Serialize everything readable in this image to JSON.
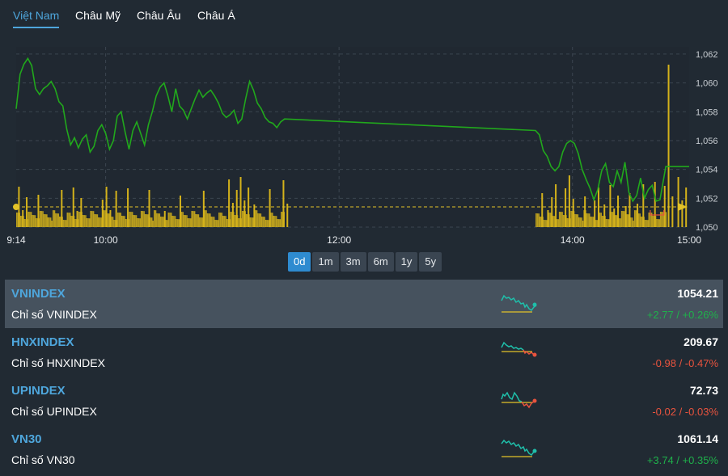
{
  "tabs": [
    {
      "label": "Việt Nam",
      "active": true
    },
    {
      "label": "Châu Mỹ",
      "active": false
    },
    {
      "label": "Châu Âu",
      "active": false
    },
    {
      "label": "Châu Á",
      "active": false
    }
  ],
  "chart_data": {
    "type": "line",
    "x_ticks": [
      "9:14",
      "10:00",
      "12:00",
      "14:00",
      "15:00"
    ],
    "y_ticks": [
      "1,062",
      "1,060",
      "1,058",
      "1,056",
      "1,054",
      "1,052",
      "1,050"
    ],
    "ylim": [
      1050,
      1062.5
    ],
    "reference_value": 1051.4,
    "x_domain_minutes": [
      554,
      900
    ],
    "series": [
      {
        "points": [
          [
            554,
            1058.2
          ],
          [
            556,
            1060.6
          ],
          [
            558,
            1061.3
          ],
          [
            560,
            1061.7
          ],
          [
            562,
            1061.2
          ],
          [
            564,
            1059.6
          ],
          [
            566,
            1059.2
          ],
          [
            568,
            1059.6
          ],
          [
            570,
            1059.8
          ],
          [
            572,
            1060.1
          ],
          [
            574,
            1059.6
          ],
          [
            576,
            1058.7
          ],
          [
            578,
            1058.4
          ],
          [
            580,
            1056.8
          ],
          [
            582,
            1055.7
          ],
          [
            584,
            1056.2
          ],
          [
            586,
            1055.5
          ],
          [
            588,
            1056.1
          ],
          [
            590,
            1056.4
          ],
          [
            592,
            1055.2
          ],
          [
            594,
            1055.6
          ],
          [
            596,
            1056.7
          ],
          [
            598,
            1057.1
          ],
          [
            600,
            1056.5
          ],
          [
            602,
            1055.4
          ],
          [
            604,
            1056.0
          ],
          [
            606,
            1057.7
          ],
          [
            608,
            1058.0
          ],
          [
            610,
            1056.6
          ],
          [
            612,
            1055.4
          ],
          [
            614,
            1056.7
          ],
          [
            616,
            1057.3
          ],
          [
            618,
            1056.5
          ],
          [
            620,
            1055.7
          ],
          [
            622,
            1057.1
          ],
          [
            624,
            1058.0
          ],
          [
            626,
            1059.1
          ],
          [
            628,
            1059.7
          ],
          [
            630,
            1060.0
          ],
          [
            632,
            1059.1
          ],
          [
            634,
            1058.0
          ],
          [
            636,
            1059.6
          ],
          [
            638,
            1058.4
          ],
          [
            640,
            1058.1
          ],
          [
            642,
            1057.5
          ],
          [
            644,
            1058.2
          ],
          [
            646,
            1058.9
          ],
          [
            648,
            1059.5
          ],
          [
            650,
            1059.0
          ],
          [
            652,
            1059.3
          ],
          [
            654,
            1059.5
          ],
          [
            656,
            1059.1
          ],
          [
            658,
            1058.6
          ],
          [
            660,
            1057.9
          ],
          [
            662,
            1057.6
          ],
          [
            664,
            1057.8
          ],
          [
            666,
            1058.1
          ],
          [
            668,
            1057.2
          ],
          [
            670,
            1057.5
          ],
          [
            672,
            1058.9
          ],
          [
            674,
            1060.1
          ],
          [
            676,
            1059.5
          ],
          [
            678,
            1058.6
          ],
          [
            680,
            1058.2
          ],
          [
            682,
            1057.6
          ],
          [
            684,
            1057.3
          ],
          [
            686,
            1057.2
          ],
          [
            688,
            1056.9
          ],
          [
            690,
            1057.3
          ],
          [
            692,
            1057.5
          ],
          [
            821,
            1056.7
          ],
          [
            823,
            1056.4
          ],
          [
            825,
            1055.3
          ],
          [
            827,
            1054.9
          ],
          [
            829,
            1054.2
          ],
          [
            831,
            1053.9
          ],
          [
            833,
            1054.2
          ],
          [
            835,
            1055.2
          ],
          [
            837,
            1055.8
          ],
          [
            839,
            1056.0
          ],
          [
            841,
            1055.8
          ],
          [
            843,
            1055.1
          ],
          [
            845,
            1054.0
          ],
          [
            847,
            1053.3
          ],
          [
            849,
            1052.7
          ],
          [
            851,
            1051.9
          ],
          [
            853,
            1052.6
          ],
          [
            855,
            1053.9
          ],
          [
            857,
            1054.4
          ],
          [
            859,
            1053.1
          ],
          [
            861,
            1052.8
          ],
          [
            863,
            1053.9
          ],
          [
            865,
            1053.1
          ],
          [
            867,
            1054.5
          ],
          [
            869,
            1052.4
          ],
          [
            871,
            1051.8
          ],
          [
            873,
            1052.2
          ],
          [
            875,
            1053.4
          ],
          [
            877,
            1052.0
          ],
          [
            879,
            1052.6
          ],
          [
            881,
            1052.9
          ],
          [
            883,
            1051.8
          ],
          [
            885,
            1051.9
          ],
          [
            888,
            1054.2
          ],
          [
            900,
            1054.2
          ]
        ]
      }
    ],
    "volume_bars": [
      [
        555,
        1
      ],
      [
        557,
        1
      ],
      [
        559,
        1
      ],
      [
        565,
        1
      ],
      [
        577,
        1
      ],
      [
        583,
        1
      ],
      [
        585,
        1
      ],
      [
        587,
        1
      ],
      [
        598,
        1
      ],
      [
        600,
        1
      ],
      [
        602,
        1
      ],
      [
        605,
        1
      ],
      [
        611,
        1
      ],
      [
        622,
        1
      ],
      [
        630,
        1
      ],
      [
        638,
        1
      ],
      [
        650,
        1
      ],
      [
        663,
        1
      ],
      [
        665,
        1
      ],
      [
        667,
        1
      ],
      [
        669,
        1
      ],
      [
        671,
        1
      ],
      [
        673,
        1
      ],
      [
        676,
        1
      ],
      [
        684,
        1
      ],
      [
        691,
        1
      ],
      [
        693,
        1
      ],
      [
        824,
        1
      ],
      [
        827,
        1
      ],
      [
        829,
        1
      ],
      [
        831,
        1
      ],
      [
        836,
        1
      ],
      [
        838,
        1
      ],
      [
        840,
        1
      ],
      [
        846,
        1
      ],
      [
        851,
        1
      ],
      [
        853,
        1
      ],
      [
        856,
        1
      ],
      [
        859,
        1
      ],
      [
        861,
        1
      ],
      [
        863,
        1
      ],
      [
        867,
        1
      ],
      [
        869,
        1
      ],
      [
        873,
        1
      ],
      [
        876,
        1
      ],
      [
        882,
        1
      ],
      [
        887,
        1
      ],
      [
        891,
        1
      ],
      [
        894,
        1
      ],
      [
        896,
        1
      ],
      [
        898,
        1
      ]
    ]
  },
  "range_buttons": [
    {
      "label": "0d",
      "active": true
    },
    {
      "label": "1m",
      "active": false
    },
    {
      "label": "3m",
      "active": false
    },
    {
      "label": "6m",
      "active": false
    },
    {
      "label": "1y",
      "active": false
    },
    {
      "label": "5y",
      "active": false
    }
  ],
  "indices": [
    {
      "name": "VNINDEX",
      "desc": "Chỉ số VNINDEX",
      "value": "1054.21",
      "change": "+2.77 / +0.26%",
      "direction": "up",
      "selected": true
    },
    {
      "name": "HNXINDEX",
      "desc": "Chỉ số HNXINDEX",
      "value": "209.67",
      "change": "-0.98 / -0.47%",
      "direction": "down",
      "selected": false
    },
    {
      "name": "UPINDEX",
      "desc": "Chỉ số UPINDEX",
      "value": "72.73",
      "change": "-0.02 / -0.03%",
      "direction": "down",
      "selected": false
    },
    {
      "name": "VN30",
      "desc": "Chỉ số VN30",
      "value": "1061.14",
      "change": "+3.74 / +0.35%",
      "direction": "up",
      "selected": false
    }
  ],
  "colors": {
    "line": "#21a81c",
    "volume": "#d4b21b",
    "reference": "#e3c228",
    "up": "#1fb14b",
    "down": "#e8533e",
    "accent": "#4ea6dc"
  }
}
